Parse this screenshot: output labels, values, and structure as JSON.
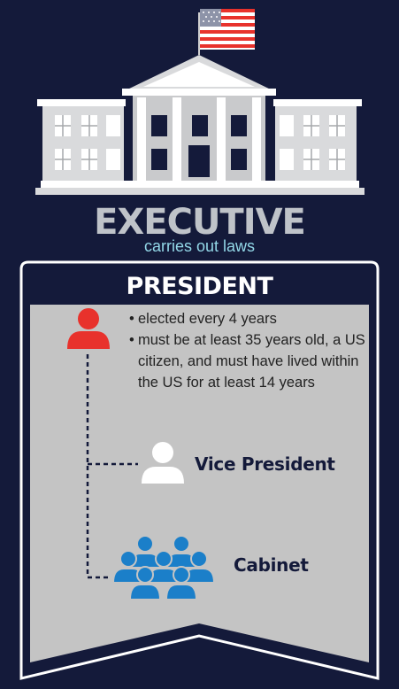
{
  "header": {
    "title": "EXECUTIVE",
    "subtitle": "carries out laws"
  },
  "panel": {
    "title": "PRESIDENT",
    "facts": [
      "elected every 4 years",
      "must be at least 35 years old, a US citizen, and must have lived within the US for at least 14 years"
    ],
    "vice_president_label": "Vice President",
    "cabinet_label": "Cabinet"
  },
  "colors": {
    "background": "#141a3a",
    "building": "#d9dadc",
    "panel_fill": "#c4c4c4",
    "president_icon": "#e8322c",
    "cabinet_icon": "#1b7fc9",
    "subtitle": "#93d8e8"
  },
  "icons": [
    "us-flag-icon",
    "white-house-icon",
    "president-person-icon",
    "vice-president-person-icon",
    "cabinet-group-icon"
  ]
}
